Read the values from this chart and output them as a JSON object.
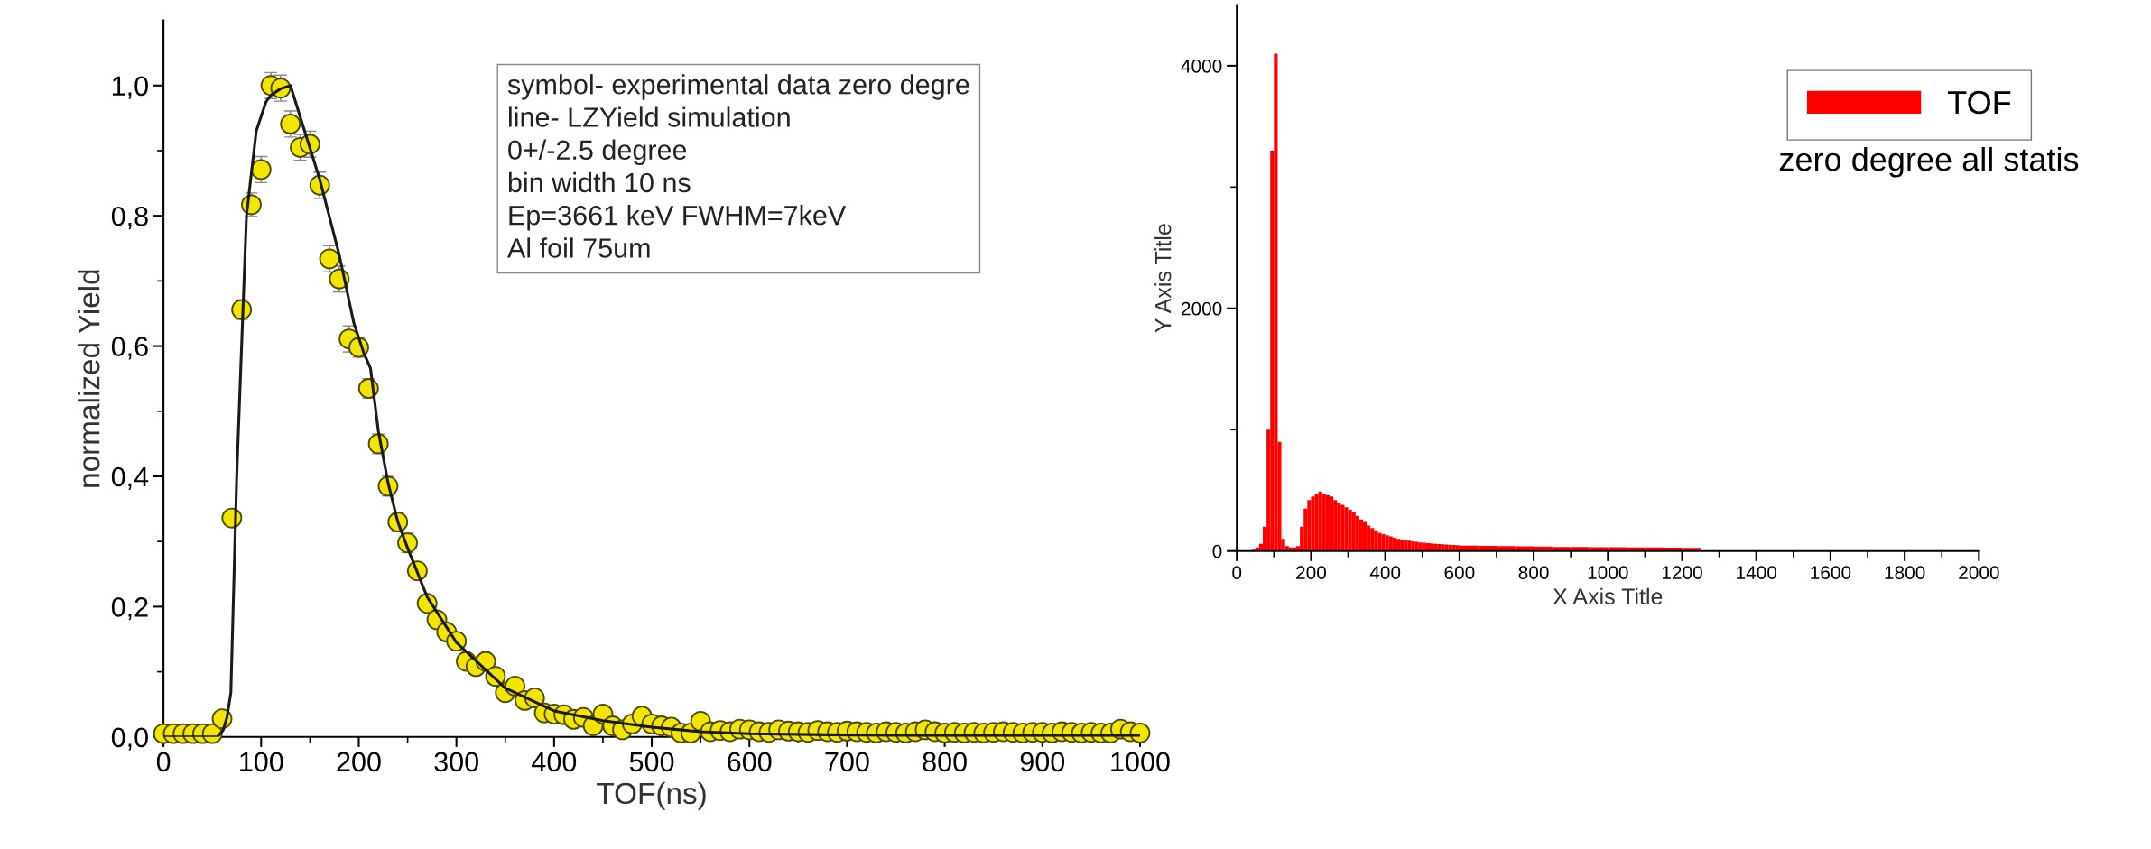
{
  "chart_data": [
    {
      "type": "scatter",
      "xlabel": "TOF(ns)",
      "ylabel": "normalized Yield",
      "annotations": [
        "symbol- experimental data zero degre",
        "line- LZYield simulation",
        "0+/-2.5 degree",
        "bin width 10 ns",
        "Ep=3661 keV FWHM=7keV",
        "Al foil 75um"
      ],
      "xlim": [
        0,
        1000
      ],
      "ylim": [
        0,
        1.1
      ],
      "xticks": [
        0,
        {
          "value": 50,
          "label": null
        },
        100,
        {
          "value": 150,
          "label": null
        },
        200,
        {
          "value": 250,
          "label": null
        },
        300,
        {
          "value": 350,
          "label": null
        },
        400,
        {
          "value": 450,
          "label": null
        },
        500,
        {
          "value": 550,
          "label": null
        },
        600,
        {
          "value": 650,
          "label": null
        },
        700,
        {
          "value": 750,
          "label": null
        },
        800,
        {
          "value": 850,
          "label": null
        },
        900,
        {
          "value": 950,
          "label": null
        },
        1000
      ],
      "yticks": [
        {
          "value": 0,
          "label": "0,0"
        },
        {
          "value": 0.1,
          "label": null
        },
        {
          "value": 0.2,
          "label": "0,2"
        },
        {
          "value": 0.3,
          "label": null
        },
        {
          "value": 0.4,
          "label": "0,4"
        },
        {
          "value": 0.5,
          "label": null
        },
        {
          "value": 0.6,
          "label": "0,6"
        },
        {
          "value": 0.7,
          "label": null
        },
        {
          "value": 0.8,
          "label": "0,8"
        },
        {
          "value": 0.9,
          "label": null
        },
        {
          "value": 1.0,
          "label": "1,0"
        }
      ],
      "marker": "circle",
      "grid": false,
      "series": [
        {
          "type": "scatter",
          "color": "#f2e600",
          "x": [
            0,
            10,
            20,
            30,
            40,
            50,
            60,
            70,
            80,
            90,
            100,
            110,
            120,
            130,
            140,
            150,
            160,
            170,
            180,
            190,
            200,
            210,
            220,
            230,
            240,
            250,
            260,
            270,
            280,
            290,
            300,
            310,
            320,
            330,
            340,
            350,
            360,
            370,
            380,
            390,
            400,
            410,
            420,
            430,
            440,
            450,
            460,
            470,
            480,
            490,
            500,
            510,
            520,
            530,
            540,
            550,
            560,
            570,
            580,
            590,
            600,
            610,
            620,
            630,
            640,
            650,
            660,
            670,
            680,
            690,
            700,
            710,
            720,
            730,
            740,
            750,
            760,
            770,
            780,
            790,
            800,
            810,
            820,
            830,
            840,
            850,
            860,
            870,
            880,
            890,
            900,
            910,
            920,
            930,
            940,
            950,
            960,
            970,
            980,
            990,
            1000
          ],
          "values": [
            0.005,
            0.005,
            0.005,
            0.005,
            0.005,
            0.005,
            0.028,
            0.336,
            0.656,
            0.817,
            0.871,
            1.0,
            0.996,
            0.941,
            0.905,
            0.91,
            0.847,
            0.734,
            0.703,
            0.611,
            0.598,
            0.535,
            0.45,
            0.385,
            0.33,
            0.298,
            0.255,
            0.205,
            0.18,
            0.161,
            0.147,
            0.116,
            0.108,
            0.116,
            0.093,
            0.068,
            0.078,
            0.056,
            0.06,
            0.037,
            0.035,
            0.034,
            0.027,
            0.03,
            0.017,
            0.035,
            0.017,
            0.011,
            0.02,
            0.032,
            0.02,
            0.017,
            0.015,
            0.006,
            0.006,
            0.024,
            0.008,
            0.01,
            0.008,
            0.012,
            0.011,
            0.008,
            0.007,
            0.011,
            0.009,
            0.008,
            0.007,
            0.01,
            0.008,
            0.007,
            0.009,
            0.008,
            0.007,
            0.006,
            0.008,
            0.007,
            0.006,
            0.008,
            0.011,
            0.008,
            0.006,
            0.007,
            0.006,
            0.007,
            0.006,
            0.007,
            0.008,
            0.007,
            0.006,
            0.007,
            0.007,
            0.006,
            0.008,
            0.007,
            0.006,
            0.007,
            0.006,
            0.006,
            0.012,
            0.008,
            0.006
          ],
          "errors": [
            null,
            null,
            null,
            null,
            null,
            null,
            null,
            null,
            0.015,
            0.018,
            0.02,
            0.02,
            0.02,
            0.02,
            0.02,
            0.02,
            0.02,
            0.02,
            0.02,
            0.02,
            0.015,
            0.015,
            0.015,
            0.015,
            0.015,
            0.015,
            0.01,
            0.01,
            0.01,
            0.01,
            0.008,
            0.008,
            0.008,
            0.008,
            0.008,
            0.008,
            0.008,
            0.008,
            0.008,
            0.008,
            null,
            null,
            null,
            null,
            null,
            null,
            null,
            null,
            null,
            null,
            null,
            null,
            null,
            null,
            null,
            null,
            null,
            null,
            null,
            null,
            null,
            null,
            null,
            null,
            null,
            null,
            null,
            null,
            null,
            null,
            null,
            null,
            null,
            null,
            null,
            null,
            null,
            null,
            null,
            null,
            null,
            null,
            null,
            null,
            null,
            null,
            null,
            null,
            null,
            null,
            null,
            null,
            null,
            null,
            null,
            null,
            null,
            null,
            null,
            null,
            null
          ]
        },
        {
          "type": "line",
          "color": "#1a1a1a",
          "marker": "none",
          "line_style": "solid",
          "x": [
            0,
            55,
            61,
            65,
            69,
            75,
            85,
            95,
            105,
            110,
            120,
            130,
            140,
            160,
            180,
            195,
            205,
            212,
            220,
            230,
            240,
            250,
            270,
            300,
            350,
            400,
            450,
            500,
            550,
            600,
            700,
            800,
            1000
          ],
          "values": [
            0,
            0,
            0.01,
            0.03,
            0.068,
            0.4,
            0.8,
            0.93,
            0.975,
            0.985,
            0.995,
            1.0,
            0.952,
            0.856,
            0.74,
            0.635,
            0.59,
            0.566,
            0.47,
            0.39,
            0.33,
            0.29,
            0.215,
            0.145,
            0.075,
            0.04,
            0.025,
            0.015,
            0.008,
            0.005,
            0.003,
            0.002,
            0.002
          ]
        }
      ]
    },
    {
      "type": "histogram",
      "xlabel": "X Axis Title",
      "ylabel": "Y Axis Title",
      "legend": "top right",
      "annotations": [
        "zero degree all statis"
      ],
      "xlim": [
        0,
        2000
      ],
      "ylim": [
        0,
        4500
      ],
      "xticks": [
        0,
        {
          "value": 100,
          "label": null
        },
        200,
        {
          "value": 300,
          "label": null
        },
        400,
        {
          "value": 500,
          "label": null
        },
        600,
        {
          "value": 700,
          "label": null
        },
        800,
        {
          "value": 900,
          "label": null
        },
        1000,
        {
          "value": 1100,
          "label": null
        },
        1200,
        {
          "value": 1300,
          "label": null
        },
        1400,
        {
          "value": 1500,
          "label": null
        },
        1600,
        {
          "value": 1700,
          "label": null
        },
        1800,
        {
          "value": 1900,
          "label": null
        },
        2000
      ],
      "yticks": [
        0,
        {
          "value": 1000,
          "label": null
        },
        2000,
        {
          "value": 3000,
          "label": null
        },
        4000
      ],
      "grid": false,
      "bins": [
        40,
        50,
        60,
        70,
        80,
        90,
        100,
        110,
        120,
        130,
        140,
        150,
        160,
        170,
        180,
        190,
        200,
        210,
        220,
        230,
        240,
        250,
        260,
        270,
        280,
        290,
        300,
        310,
        320,
        330,
        340,
        350,
        360,
        370,
        380,
        390,
        400,
        410,
        420,
        430,
        440,
        450,
        460,
        470,
        480,
        490,
        500,
        510,
        520,
        530,
        540,
        550,
        560,
        570,
        580,
        590,
        600,
        650,
        700,
        750,
        800,
        850,
        900,
        950,
        1000,
        1050,
        1100,
        1150,
        1200,
        1250
      ],
      "series": [
        {
          "name": "TOF",
          "color": "#ff0000",
          "values": [
            10,
            30,
            60,
            200,
            1000,
            3300,
            4100,
            900,
            100,
            40,
            30,
            30,
            40,
            200,
            350,
            420,
            450,
            470,
            490,
            470,
            460,
            450,
            420,
            400,
            380,
            360,
            340,
            320,
            290,
            260,
            240,
            210,
            190,
            170,
            150,
            140,
            130,
            120,
            110,
            100,
            95,
            90,
            85,
            80,
            75,
            70,
            68,
            65,
            62,
            60,
            58,
            56,
            54,
            52,
            50,
            48,
            45,
            42,
            40,
            38,
            36,
            34,
            33,
            32,
            31,
            30,
            30,
            28,
            25
          ]
        }
      ]
    }
  ]
}
